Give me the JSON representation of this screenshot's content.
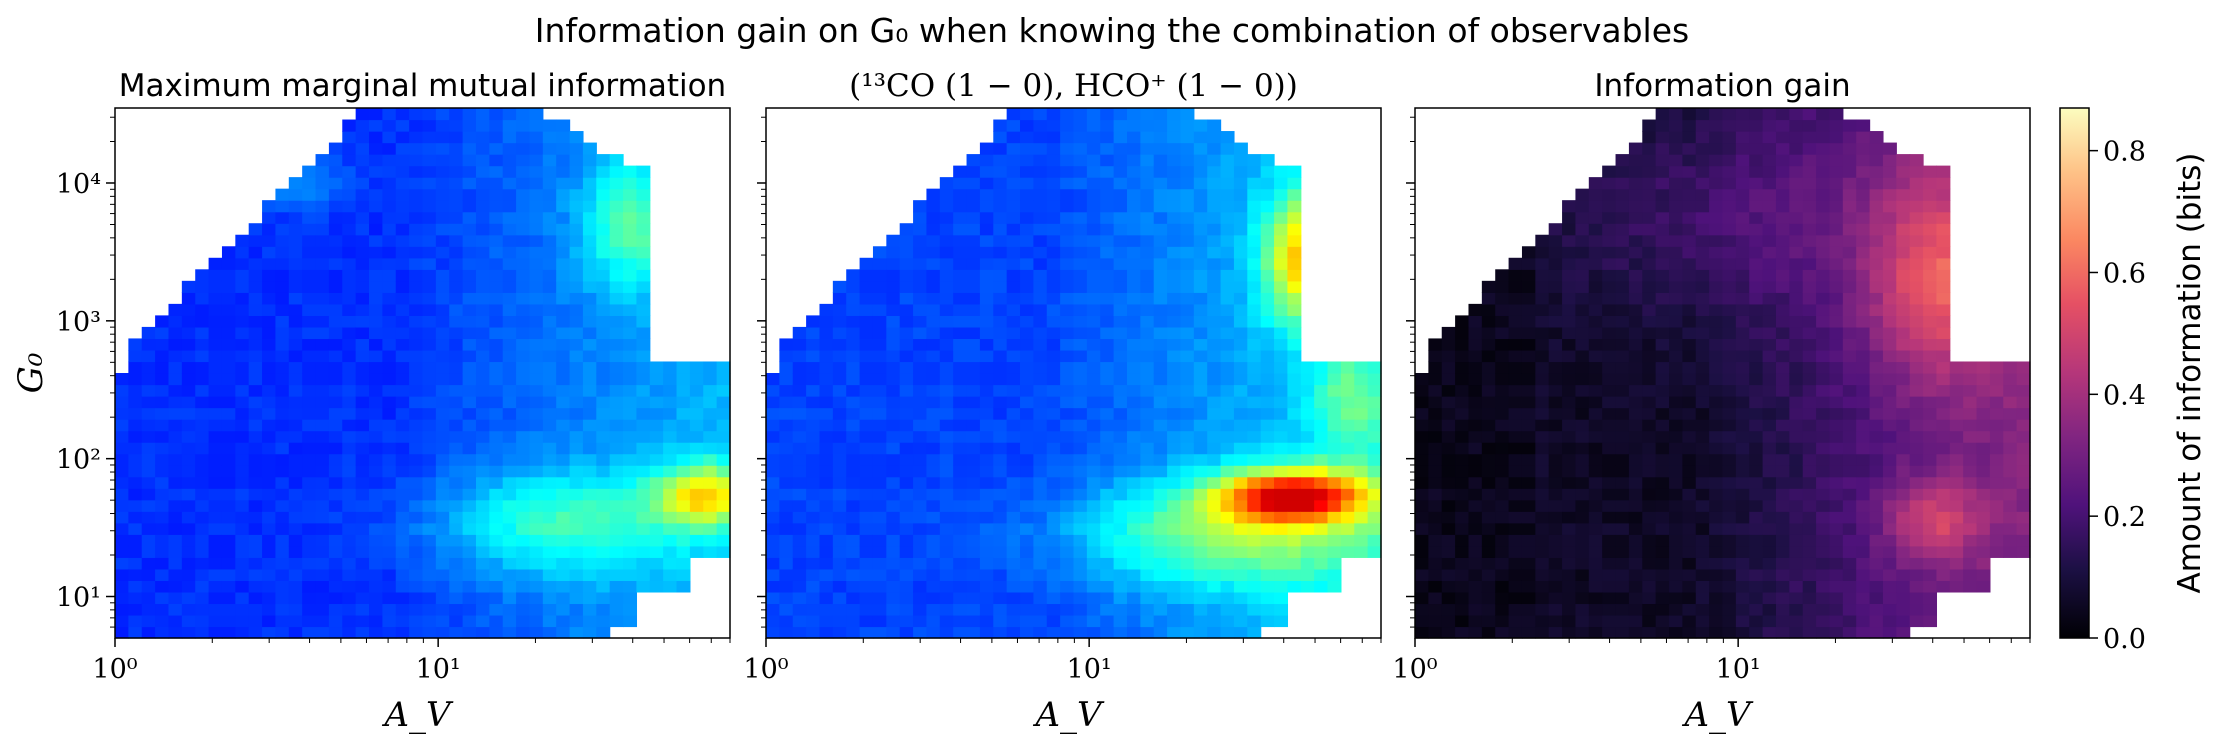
{
  "figure": {
    "title": "Information gain on G₀ when knowing the combination of observables"
  },
  "panels": [
    {
      "title": "Maximum marginal mutual information",
      "colormap": "jet",
      "show_y_ticks": true
    },
    {
      "title": "(¹³CO (1 − 0), HCO⁺ (1 − 0))",
      "colormap": "jet",
      "show_y_ticks": false
    },
    {
      "title": "Information gain",
      "colormap": "magma",
      "show_y_ticks": false
    }
  ],
  "axes": {
    "xlabel": "A_V",
    "ylabel": "G₀",
    "x_tick_labels": [
      "10⁰",
      "10¹"
    ],
    "y_tick_labels": [
      "10¹",
      "10²",
      "10³",
      "10⁴"
    ],
    "x_scale": "log",
    "y_scale": "log"
  },
  "colorbar": {
    "label": "Amount of information (bits)",
    "ticks": [
      "0.0",
      "0.2",
      "0.4",
      "0.6",
      "0.8"
    ],
    "range": [
      0,
      0.87
    ],
    "colormap": "magma"
  },
  "chart_data": [
    {
      "type": "heatmap",
      "title": "Maximum marginal mutual information",
      "xlabel": "A_V",
      "ylabel": "G₀",
      "x_scale": "log",
      "y_scale": "log",
      "xlim": [
        1,
        80
      ],
      "ylim": [
        5,
        35000
      ],
      "colormap": "jet",
      "value_range": [
        0,
        1
      ],
      "peak": {
        "A_V": 70,
        "G0": 50,
        "level": "high (orange)"
      }
    },
    {
      "type": "heatmap",
      "title": "(¹³CO (1 − 0), HCO⁺ (1 − 0))",
      "xlabel": "A_V",
      "ylabel": "G₀",
      "x_scale": "log",
      "y_scale": "log",
      "xlim": [
        1,
        80
      ],
      "ylim": [
        5,
        35000
      ],
      "colormap": "jet",
      "value_range": [
        0,
        1
      ],
      "peak": {
        "A_V": 55,
        "G0": 50,
        "level": "high (red)"
      }
    },
    {
      "type": "heatmap",
      "title": "Information gain",
      "xlabel": "A_V",
      "ylabel": "G₀",
      "x_scale": "log",
      "y_scale": "log",
      "xlim": [
        1,
        80
      ],
      "ylim": [
        5,
        35000
      ],
      "colormap": "magma",
      "value_range": [
        0,
        0.87
      ],
      "peak": {
        "A_V": 45,
        "G0": 2000,
        "value": 0.8
      },
      "colorbar": {
        "label": "Amount of information (bits)",
        "ticks": [
          0,
          0.2,
          0.4,
          0.6,
          0.8
        ]
      }
    }
  ]
}
